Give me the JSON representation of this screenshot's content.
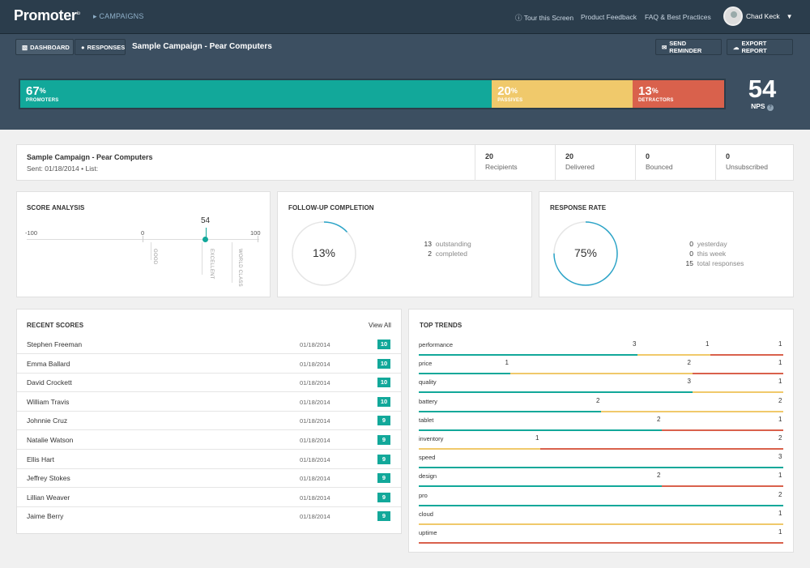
{
  "header": {
    "logo": "Promoter",
    "logo_tm": "io",
    "nav_campaigns": "CAMPAIGNS",
    "links": [
      "Tour this Screen",
      "Product Feedback",
      "FAQ & Best Practices"
    ],
    "user_name": "Chad Keck"
  },
  "subnav": {
    "dashboard": "DASHBOARD",
    "responses": "RESPONSES",
    "campaign_title": "Sample Campaign - Pear Computers",
    "send_reminder": "SEND REMINDER",
    "export_report": "EXPORT REPORT"
  },
  "nps": {
    "promoters_pct": "67",
    "promoters_label": "PROMOTERS",
    "promoters_value": 0.67,
    "passives_pct": "20",
    "passives_label": "PASSIVES",
    "passives_value": 0.2,
    "detractors_pct": "13",
    "detractors_label": "DETRACTORS",
    "detractors_value": 0.13,
    "score": "54",
    "label": "NPS",
    "colors": {
      "promoters": "#12a89a",
      "passives": "#f0c96b",
      "detractors": "#d9614c"
    }
  },
  "summary": {
    "title": "Sample Campaign - Pear Computers",
    "sent": "Sent: 01/18/2014",
    "list": "List:",
    "stats": [
      {
        "n": "20",
        "l": "Recipients"
      },
      {
        "n": "20",
        "l": "Delivered"
      },
      {
        "n": "0",
        "l": "Bounced"
      },
      {
        "n": "0",
        "l": "Unsubscribed"
      }
    ]
  },
  "score_analysis": {
    "title": "SCORE ANALYSIS",
    "min": "-100",
    "mid": "0",
    "max": "100",
    "score": "54",
    "score_value": 54,
    "marks": [
      "GOOD",
      "EXCELLENT",
      "WORLD CLASS"
    ]
  },
  "followup": {
    "title": "FOLLOW-UP COMPLETION",
    "pct": "13%",
    "value": 0.13,
    "rows": [
      {
        "n": "13",
        "l": "outstanding"
      },
      {
        "n": "2",
        "l": "completed"
      }
    ]
  },
  "response_rate": {
    "title": "RESPONSE RATE",
    "pct": "75%",
    "value": 0.75,
    "rows": [
      {
        "n": "0",
        "l": "yesterday"
      },
      {
        "n": "0",
        "l": "this week"
      },
      {
        "n": "15",
        "l": "total responses"
      }
    ]
  },
  "recent": {
    "title": "RECENT SCORES",
    "view_all": "View All",
    "rows": [
      {
        "name": "Stephen Freeman",
        "date": "01/18/2014",
        "score": "10"
      },
      {
        "name": "Emma Ballard",
        "date": "01/18/2014",
        "score": "10"
      },
      {
        "name": "David Crockett",
        "date": "01/18/2014",
        "score": "10"
      },
      {
        "name": "William Travis",
        "date": "01/18/2014",
        "score": "10"
      },
      {
        "name": "Johnnie Cruz",
        "date": "01/18/2014",
        "score": "9"
      },
      {
        "name": "Natalie Watson",
        "date": "01/18/2014",
        "score": "9"
      },
      {
        "name": "Ellis Hart",
        "date": "01/18/2014",
        "score": "9"
      },
      {
        "name": "Jeffrey Stokes",
        "date": "01/18/2014",
        "score": "9"
      },
      {
        "name": "Lillian Weaver",
        "date": "01/18/2014",
        "score": "9"
      },
      {
        "name": "Jaime Berry",
        "date": "01/18/2014",
        "score": "9"
      }
    ]
  },
  "trends": {
    "title": "TOP TRENDS",
    "rows": [
      {
        "name": "performance",
        "promoters": 3,
        "passives": 1,
        "detractors": 1
      },
      {
        "name": "price",
        "promoters": 1,
        "passives": 2,
        "detractors": 1
      },
      {
        "name": "quality",
        "promoters": 3,
        "passives": 1,
        "detractors": 0
      },
      {
        "name": "battery",
        "promoters": 2,
        "passives": 2,
        "detractors": 0
      },
      {
        "name": "tablet",
        "promoters": 2,
        "passives": 0,
        "detractors": 1
      },
      {
        "name": "inventory",
        "promoters": 0,
        "passives": 1,
        "detractors": 2
      },
      {
        "name": "speed",
        "promoters": 3,
        "passives": 0,
        "detractors": 0
      },
      {
        "name": "design",
        "promoters": 2,
        "passives": 0,
        "detractors": 1
      },
      {
        "name": "pro",
        "promoters": 2,
        "passives": 0,
        "detractors": 0
      },
      {
        "name": "cloud",
        "promoters": 0,
        "passives": 1,
        "detractors": 0
      },
      {
        "name": "uptime",
        "promoters": 0,
        "passives": 0,
        "detractors": 1
      }
    ]
  }
}
